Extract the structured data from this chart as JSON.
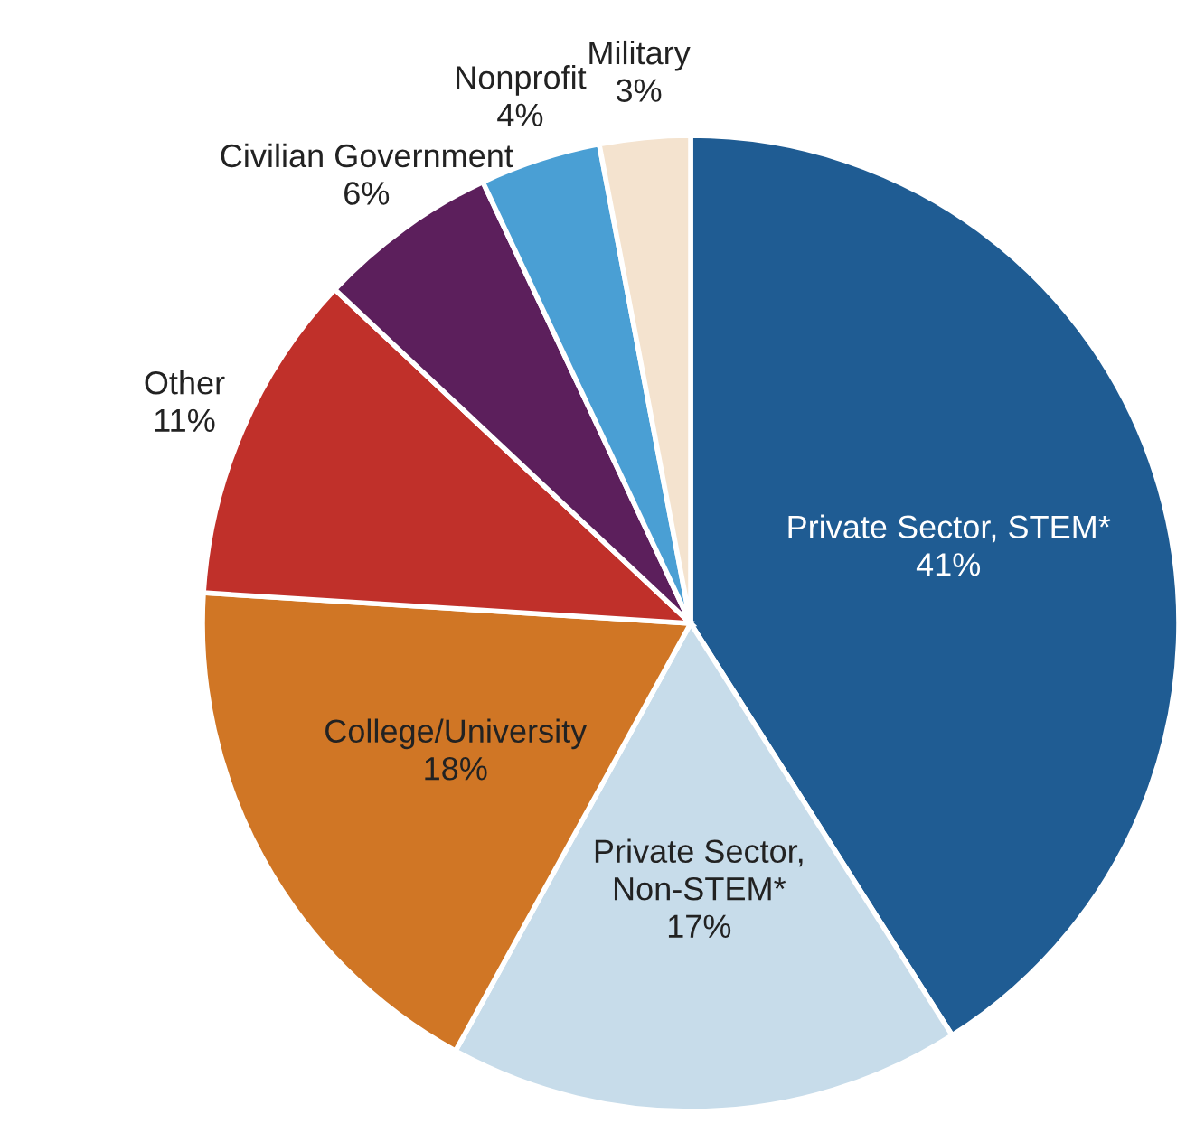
{
  "chart_data": {
    "type": "pie",
    "categories": [
      "Private Sector, STEM*",
      "Private Sector, Non-STEM*",
      "College/University",
      "Other",
      "Civilian Government",
      "Nonprofit",
      "Military"
    ],
    "values": [
      41,
      17,
      18,
      11,
      6,
      4,
      3
    ],
    "value_labels": [
      "41%",
      "17%",
      "18%",
      "11%",
      "6%",
      "4%",
      "3%"
    ],
    "colors": [
      "#1f5c93",
      "#c7dcea",
      "#d07625",
      "#c0302a",
      "#5c1f5c",
      "#4a9fd4",
      "#f4e3cf"
    ],
    "legend": false
  }
}
